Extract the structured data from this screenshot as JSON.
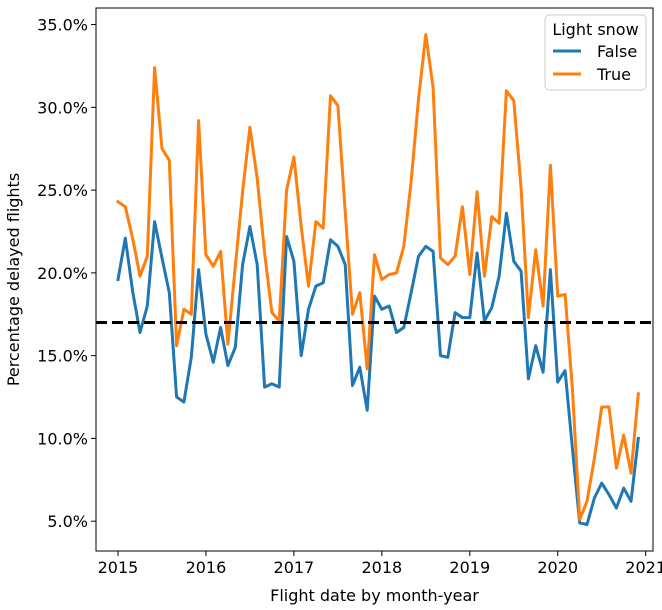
{
  "chart_data": {
    "type": "line",
    "title": "",
    "xlabel": "Flight date by month-year",
    "ylabel": "Percentage delayed flights",
    "x_tick_labels": [
      "2015",
      "2016",
      "2017",
      "2018",
      "2019",
      "2020",
      "2021"
    ],
    "y_tick_labels": [
      "5.0%",
      "10.0%",
      "15.0%",
      "20.0%",
      "25.0%",
      "30.0%",
      "35.0%"
    ],
    "x_ticks": [
      "2015-01",
      "2016-01",
      "2017-01",
      "2018-01",
      "2019-01",
      "2020-01",
      "2021-01"
    ],
    "y_ticks": [
      5,
      10,
      15,
      20,
      25,
      30,
      35
    ],
    "xlim": [
      "2014-10",
      "2021-02"
    ],
    "ylim": [
      3.2,
      36
    ],
    "grid": false,
    "reference_line": {
      "y": 17.0,
      "style": "dashed",
      "color": "#000000"
    },
    "legend": {
      "title": "Light snow",
      "position": "top-right"
    },
    "x": [
      "2015-01",
      "2015-02",
      "2015-03",
      "2015-04",
      "2015-05",
      "2015-06",
      "2015-07",
      "2015-08",
      "2015-09",
      "2015-10",
      "2015-11",
      "2015-12",
      "2016-01",
      "2016-02",
      "2016-03",
      "2016-04",
      "2016-05",
      "2016-06",
      "2016-07",
      "2016-08",
      "2016-09",
      "2016-10",
      "2016-11",
      "2016-12",
      "2017-01",
      "2017-02",
      "2017-03",
      "2017-04",
      "2017-05",
      "2017-06",
      "2017-07",
      "2017-08",
      "2017-09",
      "2017-10",
      "2017-11",
      "2017-12",
      "2018-01",
      "2018-02",
      "2018-03",
      "2018-04",
      "2018-05",
      "2018-06",
      "2018-07",
      "2018-08",
      "2018-09",
      "2018-10",
      "2018-11",
      "2018-12",
      "2019-01",
      "2019-02",
      "2019-03",
      "2019-04",
      "2019-05",
      "2019-06",
      "2019-07",
      "2019-08",
      "2019-09",
      "2019-10",
      "2019-11",
      "2019-12",
      "2020-01",
      "2020-02",
      "2020-03",
      "2020-04",
      "2020-05",
      "2020-06",
      "2020-07",
      "2020-08",
      "2020-09",
      "2020-10",
      "2020-11",
      "2020-12"
    ],
    "series": [
      {
        "name": "False",
        "color": "#1f77b4",
        "values": [
          19.6,
          22.1,
          18.9,
          16.4,
          18.0,
          23.1,
          20.9,
          18.8,
          12.5,
          12.2,
          14.9,
          20.2,
          16.3,
          14.6,
          16.7,
          14.4,
          15.5,
          20.5,
          22.8,
          20.5,
          13.1,
          13.3,
          13.1,
          22.2,
          20.7,
          15.0,
          17.8,
          19.2,
          19.4,
          22.0,
          21.6,
          20.5,
          13.2,
          14.3,
          11.7,
          18.6,
          17.8,
          18.0,
          16.4,
          16.7,
          18.8,
          21.0,
          21.6,
          21.3,
          15.0,
          14.9,
          17.6,
          17.3,
          17.3,
          21.2,
          17.1,
          17.9,
          19.8,
          23.6,
          20.7,
          20.1,
          13.6,
          15.6,
          14.0,
          20.2,
          13.4,
          14.1,
          9.4,
          4.9,
          4.8,
          6.4,
          7.3,
          6.6,
          5.8,
          7.0,
          6.2,
          10.0
        ]
      },
      {
        "name": "True",
        "color": "#ff7f0e",
        "values": [
          24.3,
          24.0,
          22.1,
          19.8,
          21.0,
          32.4,
          27.5,
          26.8,
          15.6,
          17.8,
          17.5,
          29.2,
          21.1,
          20.4,
          21.3,
          15.7,
          20.4,
          24.9,
          28.8,
          25.7,
          21.2,
          17.6,
          17.1,
          25.0,
          27.0,
          22.8,
          19.2,
          23.1,
          22.7,
          30.7,
          30.1,
          23.7,
          17.5,
          18.8,
          14.2,
          21.1,
          19.6,
          19.9,
          20.0,
          21.6,
          25.5,
          30.5,
          34.4,
          31.2,
          20.9,
          20.5,
          21.0,
          24.0,
          19.9,
          24.9,
          19.8,
          23.4,
          23.0,
          31.0,
          30.4,
          25.1,
          17.3,
          21.4,
          18.0,
          26.5,
          18.6,
          18.7,
          13.0,
          5.1,
          6.2,
          8.8,
          11.9,
          11.9,
          8.2,
          10.2,
          7.9,
          12.7
        ]
      }
    ]
  }
}
